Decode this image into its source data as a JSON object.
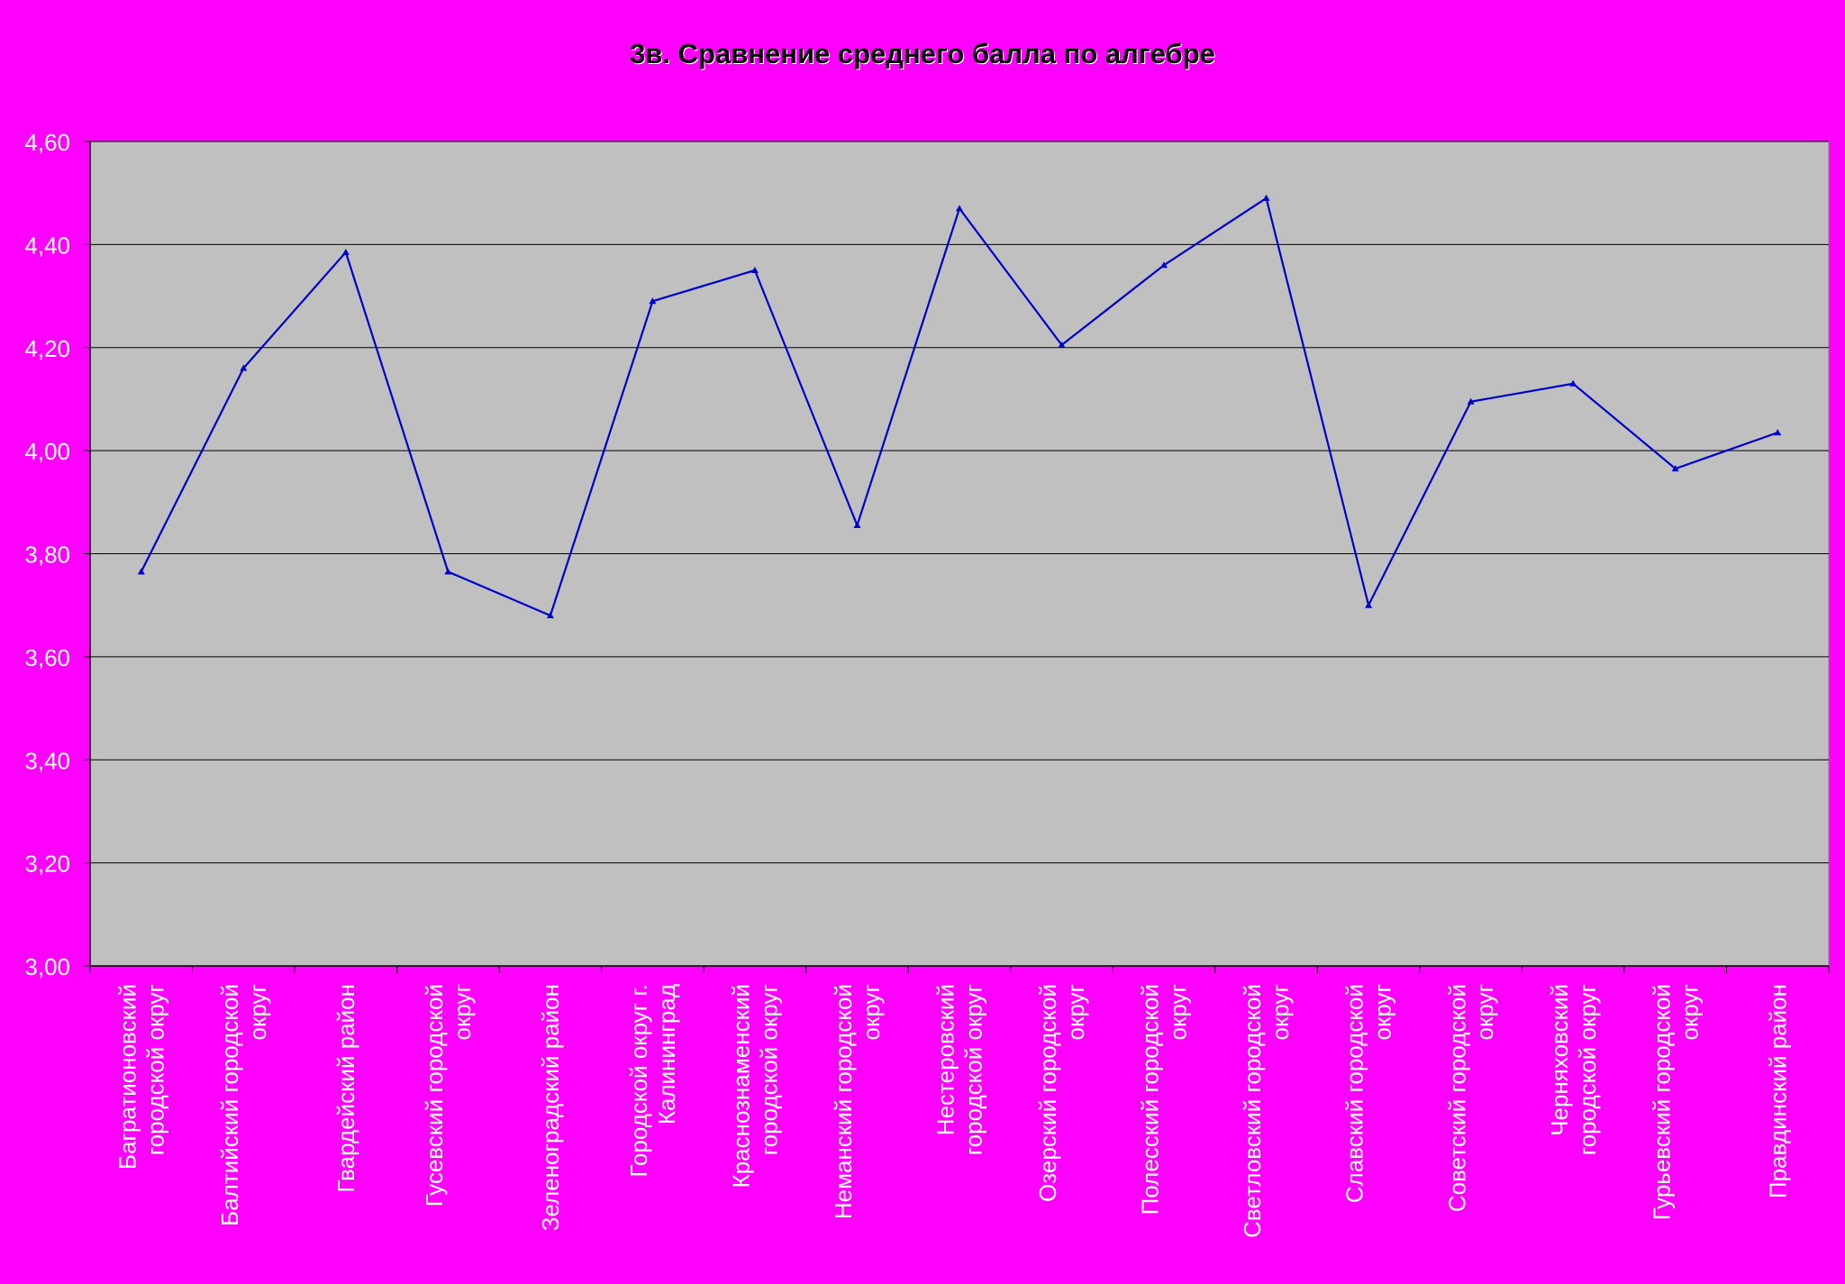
{
  "colors": {
    "background": "#FF00FF",
    "plot_area": "#C0C0C0",
    "gridline": "#000000",
    "series_line": "#0000CC",
    "label_text": "#FFFFFF"
  },
  "chart_data": {
    "type": "line",
    "title": "3в. Сравнение среднего балла по алгебре",
    "xlabel": "",
    "ylabel": "",
    "ylim": [
      3.0,
      4.6
    ],
    "ytick_step": 0.2,
    "yticks": [
      "3,00",
      "3,20",
      "3,40",
      "3,60",
      "3,80",
      "4,00",
      "4,20",
      "4,40",
      "4,60"
    ],
    "grid": true,
    "legend": "none",
    "categories": [
      [
        "Багратионовский",
        "городской округ"
      ],
      [
        "Балтийский городской",
        "округ"
      ],
      [
        "Гвардейский район"
      ],
      [
        "Гусевский городской",
        "округ"
      ],
      [
        "Зеленоградский район"
      ],
      [
        "Городской округ г.",
        "Калининград"
      ],
      [
        "Краснознаменский",
        "городской округ"
      ],
      [
        "Неманский городской",
        "округ"
      ],
      [
        "Нестеровский",
        "городской округ"
      ],
      [
        "Озерский городской",
        "округ"
      ],
      [
        "Полесский городской",
        "округ"
      ],
      [
        "Светловский городской",
        "округ"
      ],
      [
        "Славский городской",
        "округ"
      ],
      [
        "Советский городской",
        "округ"
      ],
      [
        "Черняховский",
        "городской округ"
      ],
      [
        "Гурьевский городской",
        "округ"
      ],
      [
        "Правдинский район"
      ]
    ],
    "series": [
      {
        "values": [
          3.765,
          4.16,
          4.385,
          3.765,
          3.68,
          4.29,
          4.35,
          3.855,
          4.47,
          4.205,
          4.36,
          4.49,
          3.7,
          4.095,
          4.13,
          3.965,
          4.035
        ]
      }
    ]
  }
}
